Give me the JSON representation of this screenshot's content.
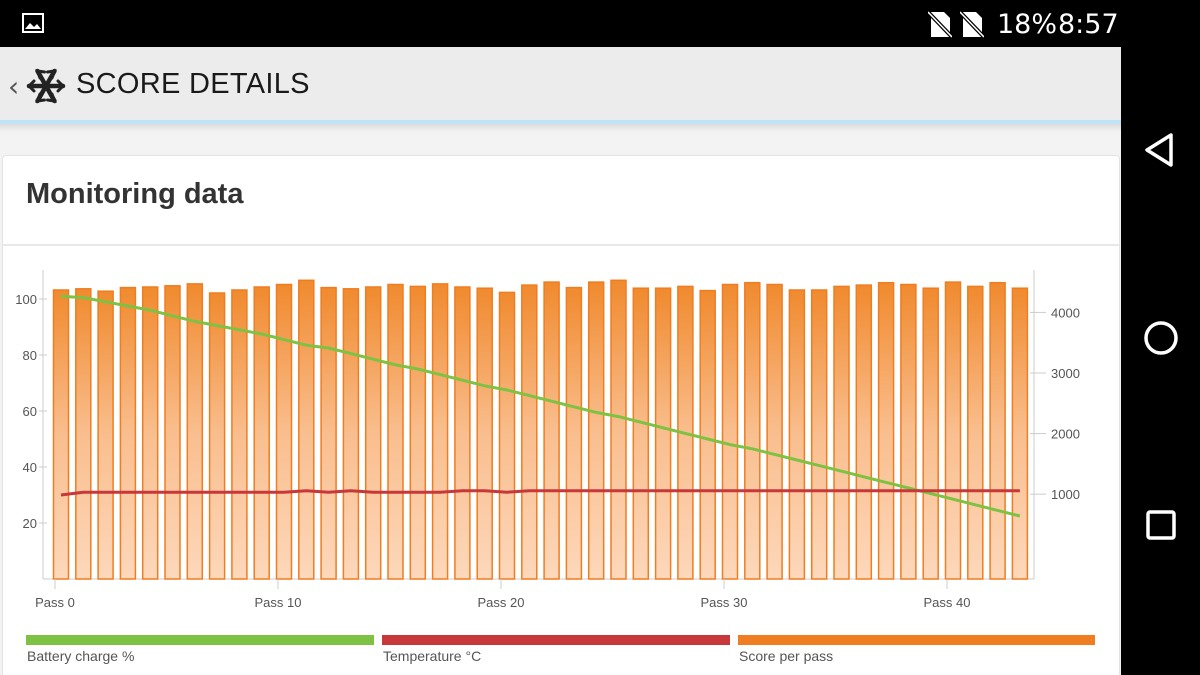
{
  "status_bar": {
    "battery": "18%",
    "time": "8:57"
  },
  "app_bar": {
    "title": "SCORE DETAILS"
  },
  "card": {
    "title": "Monitoring data"
  },
  "legend": [
    {
      "label": "Battery charge %",
      "color": "#7dc242"
    },
    {
      "label": "Temperature °C",
      "color": "#c8373a"
    },
    {
      "label": "Score per pass",
      "color": "#ef7d22"
    }
  ],
  "chart_data": {
    "type": "bar",
    "x_labels": [
      "Pass 0",
      "Pass 10",
      "Pass 20",
      "Pass 30",
      "Pass 40"
    ],
    "x_label_positions": [
      0,
      10,
      20,
      30,
      40
    ],
    "y_left_ticks": [
      20,
      40,
      60,
      80,
      100
    ],
    "y_left_range": [
      0,
      110
    ],
    "y_right_ticks": [
      1000,
      2000,
      3000,
      4000
    ],
    "y_right_range": [
      -400,
      4700
    ],
    "grid": false,
    "series": [
      {
        "name": "Score per pass",
        "axis": "right",
        "render": "bar",
        "color": "#ef7d22",
        "values": [
          4370,
          4390,
          4350,
          4410,
          4420,
          4440,
          4470,
          4320,
          4370,
          4420,
          4460,
          4530,
          4410,
          4390,
          4420,
          4460,
          4430,
          4470,
          4420,
          4400,
          4330,
          4450,
          4500,
          4410,
          4500,
          4530,
          4400,
          4400,
          4430,
          4360,
          4460,
          4490,
          4460,
          4370,
          4370,
          4430,
          4450,
          4490,
          4460,
          4400,
          4500,
          4430,
          4490,
          4400
        ]
      },
      {
        "name": "Battery charge %",
        "axis": "left",
        "render": "line",
        "color": "#7dc242",
        "values": [
          101,
          100.5,
          99,
          97.5,
          96,
          94,
          92,
          90.5,
          89,
          87.5,
          85.5,
          83.5,
          82.5,
          80.5,
          78.5,
          76.5,
          75,
          73,
          71,
          69,
          67.5,
          65.5,
          63.5,
          61.5,
          59.5,
          58,
          56,
          54,
          52,
          50,
          48,
          46.5,
          44.5,
          42.5,
          40.5,
          38.5,
          36.5,
          34.5,
          32.5,
          30.5,
          28.5,
          26.5,
          24.5,
          22.5
        ]
      },
      {
        "name": "Temperature °C",
        "axis": "left",
        "render": "line",
        "color": "#c8373a",
        "values": [
          30,
          31,
          31,
          31,
          31,
          31,
          31,
          31,
          31,
          31,
          31,
          31.5,
          31,
          31.5,
          31,
          31,
          31,
          31,
          31.5,
          31.5,
          31,
          31.5,
          31.5,
          31.5,
          31.5,
          31.5,
          31.5,
          31.5,
          31.5,
          31.5,
          31.5,
          31.5,
          31.5,
          31.5,
          31.5,
          31.5,
          31.5,
          31.5,
          31.5,
          31.5,
          31.5,
          31.5,
          31.5,
          31.5
        ]
      }
    ]
  }
}
